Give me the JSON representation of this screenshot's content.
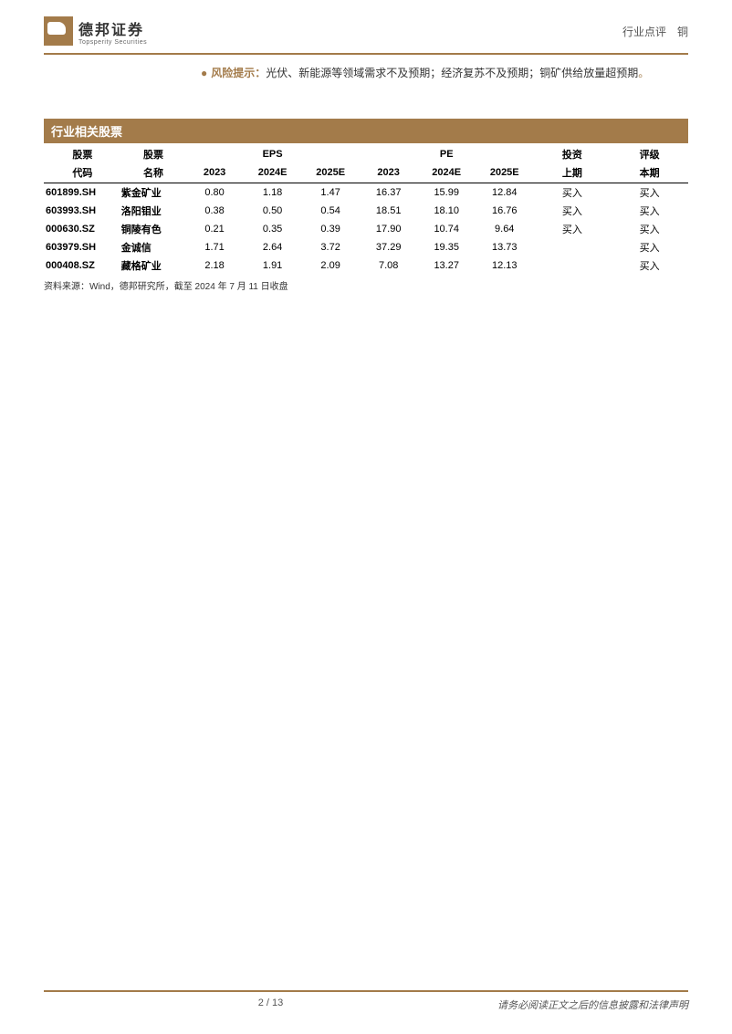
{
  "header": {
    "logo_cn": "德邦证券",
    "logo_en": "Topsperity Securities",
    "right_text": "行业点评　铜"
  },
  "risk": {
    "label": "风险提示：",
    "body_a": "光伏、新能源等领域需求不及预期；经济复苏不及预期；铜矿供给放量超预期",
    "period": "。"
  },
  "section_title": "行业相关股票",
  "table": {
    "group_headers": {
      "code": "股票",
      "name": "股票",
      "eps": "EPS",
      "pe": "PE",
      "invest": "投资",
      "rating": "评级"
    },
    "sub_headers": {
      "code": "代码",
      "name": "名称",
      "y2023": "2023",
      "y2024e": "2024E",
      "y2025e": "2025E",
      "prev": "上期",
      "curr": "本期"
    },
    "rows": [
      {
        "code": "601899.SH",
        "name": "紫金矿业",
        "eps2023": "0.80",
        "eps2024e": "1.18",
        "eps2025e": "1.47",
        "pe2023": "16.37",
        "pe2024e": "15.99",
        "pe2025e": "12.84",
        "prev": "买入",
        "curr": "买入"
      },
      {
        "code": "603993.SH",
        "name": "洛阳钼业",
        "eps2023": "0.38",
        "eps2024e": "0.50",
        "eps2025e": "0.54",
        "pe2023": "18.51",
        "pe2024e": "18.10",
        "pe2025e": "16.76",
        "prev": "买入",
        "curr": "买入"
      },
      {
        "code": "000630.SZ",
        "name": "铜陵有色",
        "eps2023": "0.21",
        "eps2024e": "0.35",
        "eps2025e": "0.39",
        "pe2023": "17.90",
        "pe2024e": "10.74",
        "pe2025e": "9.64",
        "prev": "买入",
        "curr": "买入"
      },
      {
        "code": "603979.SH",
        "name": "金诚信",
        "eps2023": "1.71",
        "eps2024e": "2.64",
        "eps2025e": "3.72",
        "pe2023": "37.29",
        "pe2024e": "19.35",
        "pe2025e": "13.73",
        "prev": "",
        "curr": "买入"
      },
      {
        "code": "000408.SZ",
        "name": "藏格矿业",
        "eps2023": "2.18",
        "eps2024e": "1.91",
        "eps2025e": "2.09",
        "pe2023": "7.08",
        "pe2024e": "13.27",
        "pe2025e": "12.13",
        "prev": "",
        "curr": "买入"
      }
    ],
    "col_widths": [
      "12%",
      "10%",
      "9%",
      "9%",
      "9%",
      "9%",
      "9%",
      "9%",
      "12%",
      "12%"
    ]
  },
  "source_note": "资料来源：Wind，德邦研究所，截至 2024 年 7 月 11 日收盘",
  "footer": {
    "page": "2 / 13",
    "disclaimer": "请务必阅读正文之后的信息披露和法律声明"
  },
  "colors": {
    "brand": "#a37b4a",
    "text": "#000000",
    "muted": "#555555",
    "bg": "#ffffff"
  }
}
